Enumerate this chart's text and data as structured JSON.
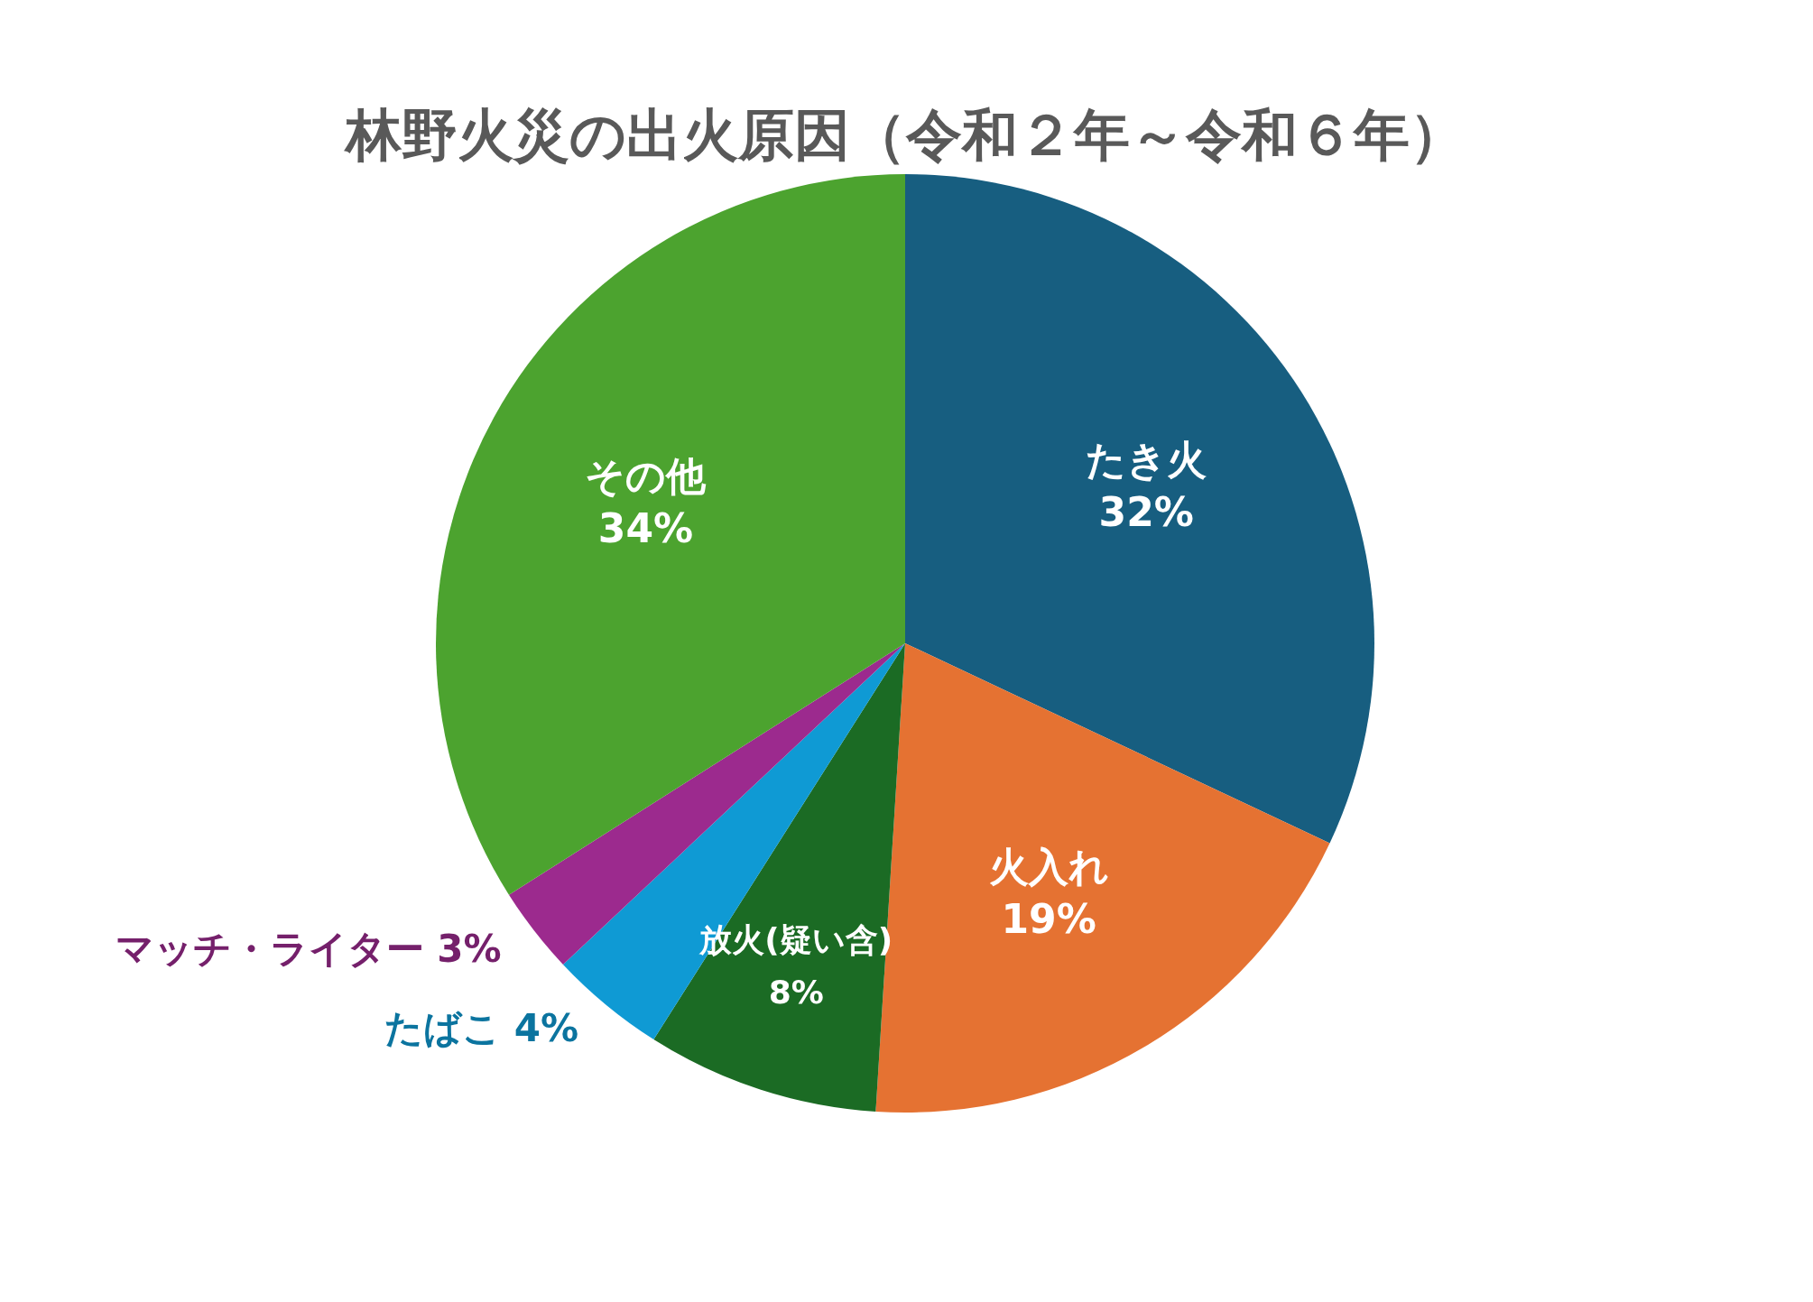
{
  "chart_data": {
    "type": "pie",
    "title": "林野火災の出火原因（令和２年～令和６年）",
    "categories": [
      "たき火",
      "火入れ",
      "放火(疑い含)",
      "たばこ",
      "マッチ・ライター",
      "その他"
    ],
    "values": [
      32,
      19,
      8,
      4,
      3,
      34
    ],
    "value_labels": [
      "32%",
      "19%",
      "8%",
      "4%",
      "3%",
      "34%"
    ],
    "colors": [
      "#175e80",
      "#e57232",
      "#1b6b24",
      "#0f9ad4",
      "#9c2a8e",
      "#4ca32f"
    ]
  }
}
